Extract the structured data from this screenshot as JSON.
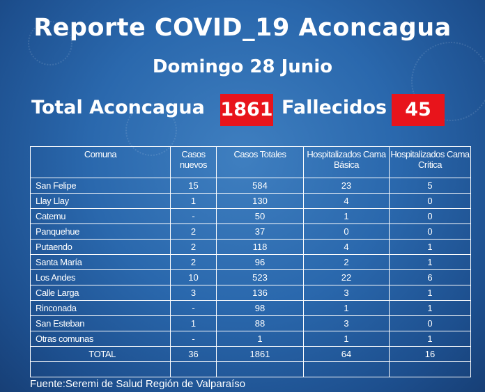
{
  "title": "Reporte COVID_19 Aconcagua",
  "subtitle": "Domingo 28 Junio",
  "totals": {
    "total_label": "Total  Aconcagua",
    "total_value": "1861",
    "deaths_label": "Fallecidos",
    "deaths_value": "45"
  },
  "table": {
    "headers": [
      "Comuna",
      "Casos nuevos",
      "Casos Totales",
      "Hospitalizados Cama Básica",
      "Hospitalizados Cama Crítica"
    ],
    "rows": [
      [
        "San Felipe",
        "15",
        "584",
        "23",
        "5"
      ],
      [
        "Llay Llay",
        "1",
        "130",
        "4",
        "0"
      ],
      [
        "Catemu",
        "-",
        "50",
        "1",
        "0"
      ],
      [
        "Panquehue",
        "2",
        "37",
        "0",
        "0"
      ],
      [
        "Putaendo",
        "2",
        "118",
        "4",
        "1"
      ],
      [
        "Santa María",
        "2",
        "96",
        "2",
        "1"
      ],
      [
        "Los Andes",
        "10",
        "523",
        "22",
        "6"
      ],
      [
        "Calle Larga",
        "3",
        "136",
        "3",
        "1"
      ],
      [
        "Rinconada",
        "-",
        "98",
        "1",
        "1"
      ],
      [
        "San Esteban",
        "1",
        "88",
        "3",
        "0"
      ],
      [
        "Otras comunas",
        "-",
        "1",
        "1",
        "1"
      ]
    ],
    "total_row": [
      "TOTAL",
      "36",
      "1861",
      "64",
      "16"
    ]
  },
  "footer": "Fuente:Seremi de Salud Región de Valparaíso",
  "colors": {
    "background": "#2a68ad",
    "highlight_box": "#e8141b",
    "text": "#ffffff"
  }
}
